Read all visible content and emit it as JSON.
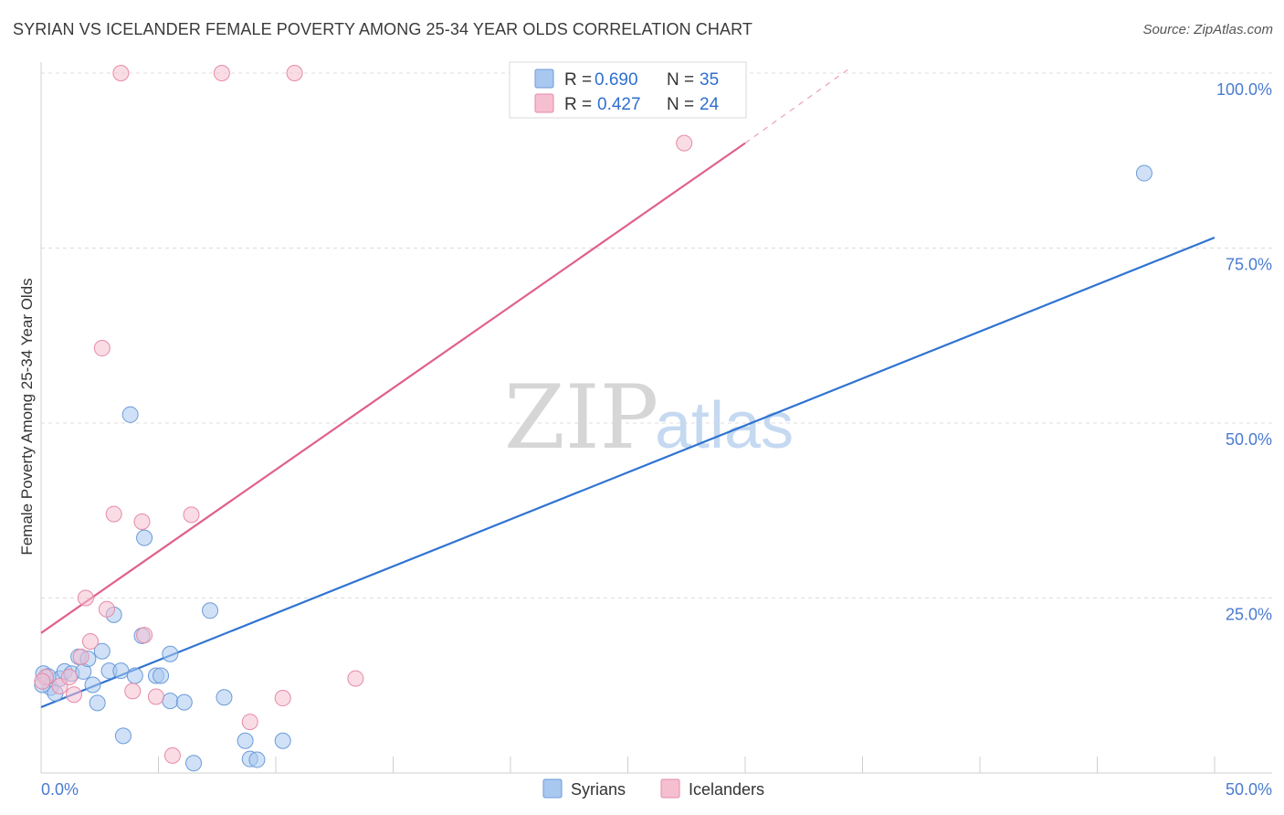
{
  "title": "SYRIAN VS ICELANDER FEMALE POVERTY AMONG 25-34 YEAR OLDS CORRELATION CHART",
  "source": "Source: ZipAtlas.com",
  "watermark": {
    "zip": "ZIP",
    "atlas": "atlas"
  },
  "colors": {
    "syrians_fill": "#a9c8f0",
    "syrians_stroke": "#6b9bd8",
    "syrians_line": "#2f73d0",
    "icelanders_fill": "#f6bfd0",
    "icelanders_stroke": "#e68aa8",
    "icelanders_line": "#e0608a",
    "grid": "#dcdcdc",
    "tick_text": "#4a7bd0"
  },
  "legend": {
    "rows": [
      {
        "r_label": "R = ",
        "r_value": "0.690",
        "n_label": "N = ",
        "n_value": "35"
      },
      {
        "r_label": "R = ",
        "r_value": "0.427",
        "n_label": "N = ",
        "n_value": "24"
      }
    ]
  },
  "bottom_legend": {
    "syrians": "Syrians",
    "icelanders": "Icelanders"
  },
  "chart_data": {
    "type": "scatter",
    "title": "SYRIAN VS ICELANDER FEMALE POVERTY AMONG 25-34 YEAR OLDS CORRELATION CHART",
    "xlabel": "",
    "ylabel": "Female Poverty Among 25-34 Year Olds",
    "xlim": [
      0,
      50
    ],
    "ylim": [
      0,
      100
    ],
    "x_tick_labels": [
      {
        "value": 0,
        "label": "0.0%"
      },
      {
        "value": 50,
        "label": "50.0%"
      }
    ],
    "y_tick_labels": [
      {
        "value": 25,
        "label": "25.0%"
      },
      {
        "value": 50,
        "label": "50.0%"
      },
      {
        "value": 75,
        "label": "75.0%"
      },
      {
        "value": 100,
        "label": "100.0%"
      }
    ],
    "series": [
      {
        "name": "Syrians",
        "R": 0.69,
        "N": 35,
        "trend": {
          "x0": 0,
          "y0": 9.4,
          "x1": 50,
          "y1": 76.5
        },
        "points": [
          [
            0.1,
            14.2
          ],
          [
            0.4,
            12.2
          ],
          [
            0.6,
            11.4
          ],
          [
            0.8,
            13.5
          ],
          [
            1.0,
            14.5
          ],
          [
            1.3,
            14.2
          ],
          [
            1.6,
            16.6
          ],
          [
            1.8,
            14.5
          ],
          [
            2.0,
            16.3
          ],
          [
            2.2,
            12.6
          ],
          [
            2.4,
            10.0
          ],
          [
            2.6,
            17.4
          ],
          [
            2.9,
            14.6
          ],
          [
            3.1,
            22.6
          ],
          [
            3.4,
            14.6
          ],
          [
            3.5,
            5.3
          ],
          [
            3.8,
            51.2
          ],
          [
            4.0,
            13.9
          ],
          [
            4.4,
            33.6
          ],
          [
            4.3,
            19.6
          ],
          [
            4.9,
            13.9
          ],
          [
            5.1,
            13.9
          ],
          [
            5.5,
            17.0
          ],
          [
            5.5,
            10.3
          ],
          [
            6.1,
            10.1
          ],
          [
            6.5,
            1.4
          ],
          [
            7.2,
            23.2
          ],
          [
            7.8,
            10.8
          ],
          [
            8.7,
            4.6
          ],
          [
            8.9,
            2.0
          ],
          [
            9.2,
            1.9
          ],
          [
            10.3,
            4.6
          ],
          [
            47.0,
            85.7
          ],
          [
            0.05,
            12.6
          ],
          [
            0.3,
            13.8
          ]
        ]
      },
      {
        "name": "Icelanders",
        "R": 0.427,
        "N": 24,
        "trend": {
          "x0": 0,
          "y0": 20.0,
          "x1": 30,
          "y1": 90.0
        },
        "trend_dashed_end": {
          "x": 34.5,
          "y": 100.8
        },
        "points": [
          [
            0.2,
            13.7
          ],
          [
            0.8,
            12.4
          ],
          [
            1.2,
            13.7
          ],
          [
            1.4,
            11.2
          ],
          [
            1.7,
            16.6
          ],
          [
            1.9,
            25.0
          ],
          [
            2.1,
            18.8
          ],
          [
            2.6,
            60.7
          ],
          [
            2.8,
            23.4
          ],
          [
            3.1,
            37.0
          ],
          [
            3.4,
            100.0
          ],
          [
            3.9,
            11.7
          ],
          [
            4.3,
            35.9
          ],
          [
            4.4,
            19.7
          ],
          [
            4.9,
            10.9
          ],
          [
            5.6,
            2.5
          ],
          [
            6.4,
            36.9
          ],
          [
            7.7,
            100.0
          ],
          [
            8.9,
            7.3
          ],
          [
            10.3,
            10.7
          ],
          [
            10.8,
            100.0
          ],
          [
            13.4,
            13.5
          ],
          [
            27.4,
            90.0
          ],
          [
            0.05,
            13.1
          ]
        ]
      }
    ]
  }
}
